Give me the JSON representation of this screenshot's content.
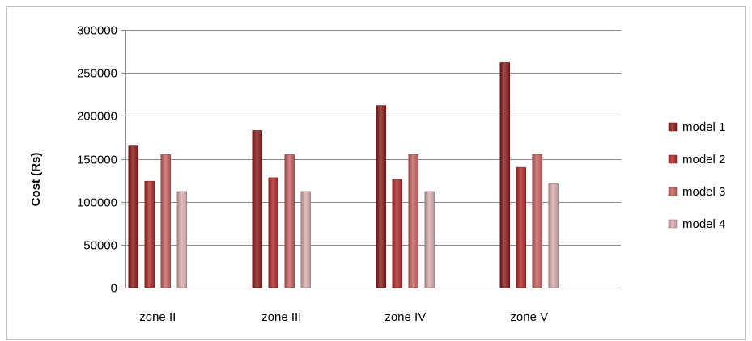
{
  "chart_data": {
    "type": "bar",
    "title": "",
    "xlabel": "",
    "ylabel": "Cost (Rs)",
    "categories": [
      "zone II",
      "zone III",
      "zone IV",
      "zone V"
    ],
    "ylim": [
      0,
      300000
    ],
    "yticks": [
      0,
      50000,
      100000,
      150000,
      200000,
      250000,
      300000
    ],
    "grid": true,
    "legend_position": "right",
    "series": [
      {
        "name": "model 1",
        "color": "#8b1a1a",
        "values": [
          165000,
          183000,
          212000,
          262000
        ]
      },
      {
        "name": "model 2",
        "color": "#b22a2a",
        "values": [
          124000,
          128000,
          126000,
          140000
        ]
      },
      {
        "name": "model 3",
        "color": "#c96363",
        "values": [
          155000,
          155000,
          155000,
          155000
        ]
      },
      {
        "name": "model 4",
        "color": "#dcaeb0",
        "values": [
          112000,
          112000,
          112000,
          121000
        ]
      }
    ]
  }
}
